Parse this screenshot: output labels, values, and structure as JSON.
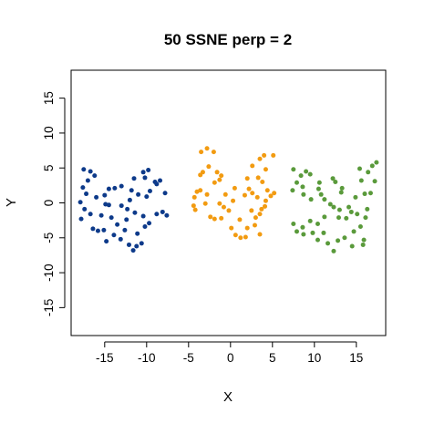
{
  "chart_data": {
    "type": "scatter",
    "title": "50 SSNE perp = 2",
    "xlabel": "X",
    "ylabel": "Y",
    "xlim": [
      -19,
      18.5
    ],
    "ylim": [
      -19,
      19
    ],
    "xticks": [
      -15,
      -10,
      -5,
      0,
      5,
      10,
      15
    ],
    "yticks": [
      -15,
      -10,
      -5,
      0,
      5,
      10,
      15
    ],
    "xtick_labels": [
      "-15",
      "-10",
      "-5",
      "0",
      "5",
      "10",
      "15"
    ],
    "ytick_labels": [
      "-15",
      "-10",
      "-5",
      "0",
      "5",
      "10",
      "15"
    ],
    "grid": false,
    "series": [
      {
        "color": "#0d3a8a",
        "points": [
          [
            -17.5,
            4.8
          ],
          [
            -16.7,
            4.5
          ],
          [
            -16.2,
            3.9
          ],
          [
            -17.0,
            3.2
          ],
          [
            -17.6,
            2.2
          ],
          [
            -17.2,
            1.3
          ],
          [
            -17.9,
            0.1
          ],
          [
            -17.4,
            -0.9
          ],
          [
            -17.8,
            -2.3
          ],
          [
            -16.7,
            -1.6
          ],
          [
            -16.4,
            -3.7
          ],
          [
            -15.8,
            -4.0
          ],
          [
            -15.1,
            -3.9
          ],
          [
            -14.8,
            -5.5
          ],
          [
            -14.2,
            -2.1
          ],
          [
            -13.9,
            -4.6
          ],
          [
            -13.5,
            -3.1
          ],
          [
            -13.1,
            -5.2
          ],
          [
            -12.6,
            -3.9
          ],
          [
            -12.1,
            -6.0
          ],
          [
            -11.6,
            -6.8
          ],
          [
            -11.2,
            -6.2
          ],
          [
            -11.1,
            -4.4
          ],
          [
            -10.6,
            -5.8
          ],
          [
            -10.2,
            -3.4
          ],
          [
            -9.7,
            -2.9
          ],
          [
            -10.4,
            -1.9
          ],
          [
            -11.4,
            -1.4
          ],
          [
            -12.3,
            -0.9
          ],
          [
            -13.0,
            -0.4
          ],
          [
            -12.0,
            0.4
          ],
          [
            -11.0,
            1.2
          ],
          [
            -10.0,
            0.9
          ],
          [
            -9.6,
            1.7
          ],
          [
            -8.4,
            3.2
          ],
          [
            -8.8,
            2.7
          ],
          [
            -7.8,
            1.4
          ],
          [
            -8.1,
            -1.3
          ],
          [
            -8.8,
            -1.6
          ],
          [
            -7.6,
            -1.8
          ],
          [
            -10.4,
            4.4
          ],
          [
            -9.8,
            4.7
          ],
          [
            -10.2,
            3.6
          ],
          [
            -11.5,
            3.5
          ],
          [
            -13.0,
            2.4
          ],
          [
            -13.8,
            2.1
          ],
          [
            -14.5,
            2.0
          ],
          [
            -15.0,
            1.1
          ],
          [
            -14.9,
            -0.2
          ],
          [
            -14.5,
            -0.3
          ],
          [
            -15.4,
            -1.8
          ],
          [
            -11.8,
            1.8
          ],
          [
            -9.0,
            3.0
          ],
          [
            -12.4,
            -2.4
          ],
          [
            -16.0,
            0.8
          ]
        ]
      },
      {
        "color": "#f29b11",
        "points": [
          [
            -3.5,
            7.3
          ],
          [
            -2.8,
            7.8
          ],
          [
            -2.0,
            7.3
          ],
          [
            -2.6,
            5.2
          ],
          [
            -3.3,
            4.4
          ],
          [
            -3.6,
            4.0
          ],
          [
            -1.6,
            4.4
          ],
          [
            -1.1,
            3.9
          ],
          [
            -1.9,
            2.9
          ],
          [
            -1.3,
            3.3
          ],
          [
            -4.0,
            1.6
          ],
          [
            -4.3,
            0.8
          ],
          [
            -4.2,
            -1.0
          ],
          [
            -4.4,
            -0.4
          ],
          [
            -3.0,
            -0.1
          ],
          [
            -2.4,
            -2.0
          ],
          [
            -1.9,
            -2.3
          ],
          [
            -1.1,
            -2.2
          ],
          [
            -1.3,
            -0.1
          ],
          [
            -0.2,
            -1.1
          ],
          [
            0.1,
            -3.6
          ],
          [
            0.6,
            -4.6
          ],
          [
            1.2,
            -5.0
          ],
          [
            1.8,
            -4.9
          ],
          [
            2.0,
            -3.6
          ],
          [
            2.9,
            -3.2
          ],
          [
            3.5,
            -4.5
          ],
          [
            3.0,
            -2.1
          ],
          [
            2.5,
            -1.1
          ],
          [
            3.7,
            -0.9
          ],
          [
            3.5,
            -1.6
          ],
          [
            4.1,
            -0.5
          ],
          [
            4.2,
            0.3
          ],
          [
            4.8,
            1.0
          ],
          [
            5.2,
            1.4
          ],
          [
            4.4,
            1.8
          ],
          [
            3.2,
            0.8
          ],
          [
            3.8,
            3.0
          ],
          [
            3.3,
            3.6
          ],
          [
            4.2,
            4.8
          ],
          [
            3.5,
            6.3
          ],
          [
            4.0,
            6.8
          ],
          [
            5.1,
            6.8
          ],
          [
            2.6,
            5.3
          ],
          [
            2.0,
            3.5
          ],
          [
            1.7,
            1.1
          ],
          [
            2.2,
            2.0
          ],
          [
            2.6,
            1.4
          ],
          [
            0.5,
            2.1
          ],
          [
            -0.6,
            1.2
          ],
          [
            -3.6,
            1.8
          ],
          [
            -2.8,
            1.2
          ],
          [
            1.1,
            -2.4
          ],
          [
            -0.8,
            -0.6
          ],
          [
            0.3,
            0.3
          ]
        ]
      },
      {
        "color": "#5a9a3b",
        "points": [
          [
            7.5,
            4.8
          ],
          [
            9.0,
            4.5
          ],
          [
            9.5,
            4.1
          ],
          [
            8.4,
            3.9
          ],
          [
            7.9,
            2.9
          ],
          [
            7.4,
            1.8
          ],
          [
            8.6,
            2.3
          ],
          [
            8.7,
            1.2
          ],
          [
            9.6,
            0.5
          ],
          [
            10.6,
            2.9
          ],
          [
            10.5,
            2.0
          ],
          [
            10.8,
            1.2
          ],
          [
            11.2,
            0.5
          ],
          [
            12.2,
            3.5
          ],
          [
            12.5,
            3.0
          ],
          [
            13.2,
            1.5
          ],
          [
            12.3,
            -0.6
          ],
          [
            13.0,
            -1.0
          ],
          [
            12.9,
            -2.1
          ],
          [
            13.8,
            -2.2
          ],
          [
            14.4,
            -1.3
          ],
          [
            14.1,
            -0.6
          ],
          [
            15.1,
            -1.6
          ],
          [
            14.9,
            0.8
          ],
          [
            16.0,
            1.3
          ],
          [
            16.7,
            1.4
          ],
          [
            15.6,
            3.2
          ],
          [
            15.4,
            4.9
          ],
          [
            16.4,
            4.4
          ],
          [
            16.9,
            5.3
          ],
          [
            17.4,
            5.8
          ],
          [
            17.2,
            3.1
          ],
          [
            16.3,
            -0.9
          ],
          [
            16.1,
            -2.1
          ],
          [
            15.5,
            -3.4
          ],
          [
            15.9,
            -5.3
          ],
          [
            15.8,
            -6.0
          ],
          [
            14.5,
            -6.2
          ],
          [
            13.6,
            -5.0
          ],
          [
            12.8,
            -5.4
          ],
          [
            12.3,
            -6.9
          ],
          [
            11.6,
            -5.8
          ],
          [
            11.1,
            -4.3
          ],
          [
            10.4,
            -5.3
          ],
          [
            9.8,
            -4.3
          ],
          [
            8.7,
            -4.5
          ],
          [
            7.9,
            -4.1
          ],
          [
            7.5,
            -3.0
          ],
          [
            8.6,
            -3.5
          ],
          [
            9.5,
            -2.6
          ],
          [
            10.4,
            -3.0
          ],
          [
            11.2,
            -2.0
          ],
          [
            14.7,
            -4.1
          ],
          [
            13.3,
            2.1
          ],
          [
            11.9,
            -0.2
          ]
        ]
      }
    ]
  }
}
